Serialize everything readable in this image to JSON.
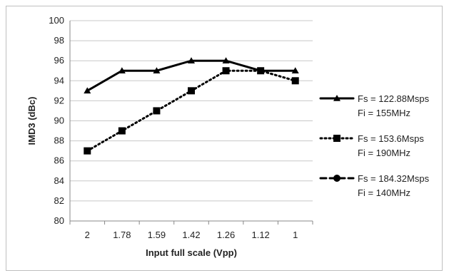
{
  "chart_data": {
    "type": "line",
    "title": "",
    "xlabel": "Input full scale (Vpp)",
    "ylabel": "IMD3 (dBc)",
    "categories": [
      "2",
      "1.78",
      "1.59",
      "1.42",
      "1.26",
      "1.12",
      "1"
    ],
    "ylim": [
      80,
      100
    ],
    "yticks": [
      80,
      82,
      84,
      86,
      88,
      90,
      92,
      94,
      96,
      98,
      100
    ],
    "grid": "horizontal",
    "legend_position": "right",
    "series": [
      {
        "name_line1": "Fs = 122.88Msps",
        "name_line2": "Fi = 155MHz",
        "values": [
          93,
          95,
          95,
          96,
          96,
          95,
          95
        ],
        "marker": "triangle",
        "line_style": "solid"
      },
      {
        "name_line1": "Fs = 153.6Msps",
        "name_line2": "Fi = 190MHz",
        "values": [
          87,
          89,
          91,
          93,
          95,
          95,
          94
        ],
        "marker": "square",
        "line_style": "dotted"
      },
      {
        "name_line1": "Fs = 184.32Msps",
        "name_line2": "Fi = 140MHz",
        "values": [
          null,
          null,
          null,
          null,
          null,
          null,
          null
        ],
        "marker": "circle",
        "line_style": "dashed"
      }
    ]
  }
}
